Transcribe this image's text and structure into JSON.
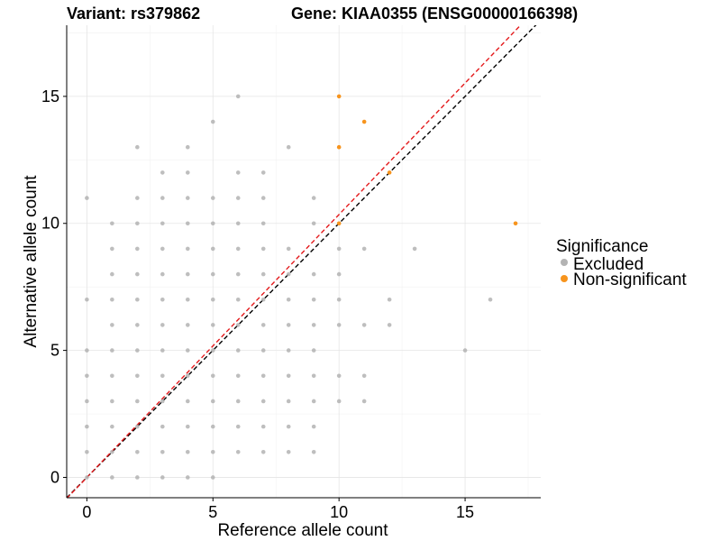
{
  "chart_data": {
    "type": "scatter",
    "title_left": "Variant: rs379862",
    "title_right": "Gene: KIAA0355 (ENSG00000166398)",
    "xlabel": "Reference allele count",
    "ylabel": "Alternative allele count",
    "xlim": [
      -0.8,
      18
    ],
    "ylim": [
      -0.8,
      17.8
    ],
    "xticks": [
      0,
      5,
      10,
      15
    ],
    "yticks": [
      0,
      5,
      10,
      15
    ],
    "grid": true,
    "legend": {
      "title": "Significance",
      "position": "right",
      "entries": [
        {
          "label": "Excluded",
          "color": "#b3b3b3"
        },
        {
          "label": "Non-significant",
          "color": "#f7941d"
        }
      ]
    },
    "reference_lines": [
      {
        "name": "identity",
        "slope": 1,
        "intercept": 0,
        "color": "#000000",
        "dash": true
      },
      {
        "name": "fit",
        "slope": 1.035,
        "intercept": 0,
        "color": "#e41a1c",
        "dash": true
      }
    ],
    "series": [
      {
        "name": "Excluded",
        "color": "#b3b3b3",
        "points": [
          [
            0,
            0
          ],
          [
            0,
            1
          ],
          [
            0,
            2
          ],
          [
            0,
            3
          ],
          [
            0,
            4
          ],
          [
            0,
            5
          ],
          [
            0,
            7
          ],
          [
            0,
            11
          ],
          [
            1,
            0
          ],
          [
            1,
            1
          ],
          [
            1,
            2
          ],
          [
            1,
            3
          ],
          [
            1,
            4
          ],
          [
            1,
            5
          ],
          [
            1,
            6
          ],
          [
            1,
            7
          ],
          [
            1,
            8
          ],
          [
            1,
            9
          ],
          [
            1,
            10
          ],
          [
            2,
            0
          ],
          [
            2,
            1
          ],
          [
            2,
            2
          ],
          [
            2,
            3
          ],
          [
            2,
            4
          ],
          [
            2,
            5
          ],
          [
            2,
            6
          ],
          [
            2,
            7
          ],
          [
            2,
            8
          ],
          [
            2,
            9
          ],
          [
            2,
            10
          ],
          [
            2,
            11
          ],
          [
            2,
            13
          ],
          [
            3,
            0
          ],
          [
            3,
            1
          ],
          [
            3,
            2
          ],
          [
            3,
            3
          ],
          [
            3,
            4
          ],
          [
            3,
            5
          ],
          [
            3,
            6
          ],
          [
            3,
            7
          ],
          [
            3,
            8
          ],
          [
            3,
            9
          ],
          [
            3,
            10
          ],
          [
            3,
            11
          ],
          [
            3,
            12
          ],
          [
            4,
            0
          ],
          [
            4,
            1
          ],
          [
            4,
            2
          ],
          [
            4,
            3
          ],
          [
            4,
            4
          ],
          [
            4,
            5
          ],
          [
            4,
            6
          ],
          [
            4,
            7
          ],
          [
            4,
            8
          ],
          [
            4,
            9
          ],
          [
            4,
            10
          ],
          [
            4,
            11
          ],
          [
            4,
            12
          ],
          [
            4,
            13
          ],
          [
            5,
            0
          ],
          [
            5,
            1
          ],
          [
            5,
            2
          ],
          [
            5,
            3
          ],
          [
            5,
            4
          ],
          [
            5,
            5
          ],
          [
            5,
            6
          ],
          [
            5,
            7
          ],
          [
            5,
            8
          ],
          [
            5,
            9
          ],
          [
            5,
            10
          ],
          [
            5,
            11
          ],
          [
            5,
            14
          ],
          [
            6,
            1
          ],
          [
            6,
            2
          ],
          [
            6,
            3
          ],
          [
            6,
            4
          ],
          [
            6,
            5
          ],
          [
            6,
            6
          ],
          [
            6,
            7
          ],
          [
            6,
            8
          ],
          [
            6,
            9
          ],
          [
            6,
            10
          ],
          [
            6,
            11
          ],
          [
            6,
            12
          ],
          [
            6,
            15
          ],
          [
            7,
            1
          ],
          [
            7,
            2
          ],
          [
            7,
            3
          ],
          [
            7,
            4
          ],
          [
            7,
            5
          ],
          [
            7,
            6
          ],
          [
            7,
            7
          ],
          [
            7,
            8
          ],
          [
            7,
            9
          ],
          [
            7,
            10
          ],
          [
            7,
            11
          ],
          [
            7,
            12
          ],
          [
            8,
            1
          ],
          [
            8,
            2
          ],
          [
            8,
            3
          ],
          [
            8,
            4
          ],
          [
            8,
            5
          ],
          [
            8,
            6
          ],
          [
            8,
            7
          ],
          [
            8,
            8
          ],
          [
            8,
            9
          ],
          [
            8,
            13
          ],
          [
            9,
            1
          ],
          [
            9,
            2
          ],
          [
            9,
            3
          ],
          [
            9,
            4
          ],
          [
            9,
            5
          ],
          [
            9,
            6
          ],
          [
            9,
            7
          ],
          [
            9,
            8
          ],
          [
            9,
            10
          ],
          [
            9,
            11
          ],
          [
            10,
            3
          ],
          [
            10,
            4
          ],
          [
            10,
            6
          ],
          [
            10,
            7
          ],
          [
            10,
            8
          ],
          [
            10,
            9
          ],
          [
            11,
            3
          ],
          [
            11,
            4
          ],
          [
            11,
            6
          ],
          [
            11,
            9
          ],
          [
            12,
            6
          ],
          [
            12,
            7
          ],
          [
            13,
            9
          ],
          [
            15,
            5
          ],
          [
            16,
            7
          ]
        ]
      },
      {
        "name": "Non-significant",
        "color": "#f7941d",
        "points": [
          [
            10,
            15
          ],
          [
            10,
            13
          ],
          [
            11,
            14
          ],
          [
            12,
            12
          ],
          [
            10,
            10
          ],
          [
            17,
            10
          ]
        ]
      }
    ]
  }
}
